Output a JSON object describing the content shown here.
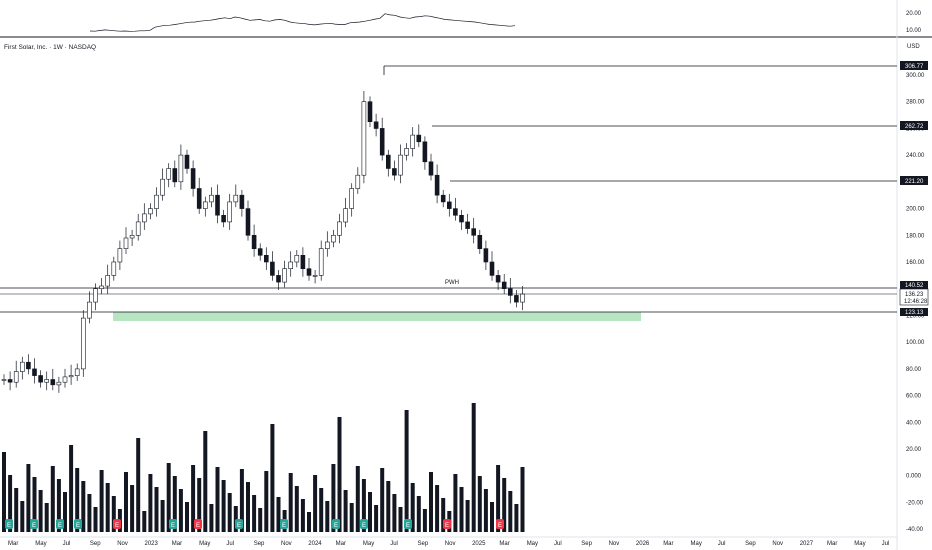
{
  "header": {
    "title": "First Solar, Inc. · 1W · NASDAQ",
    "currency": "USD"
  },
  "indicator_pane": {
    "ticks": [
      "20.00",
      "10.00"
    ]
  },
  "price_axis": {
    "ticks": [
      "300.00",
      "280.00",
      "260.00",
      "240.00",
      "220.00",
      "200.00",
      "180.00",
      "160.00",
      "140.00",
      "120.00",
      "100.00",
      "80.00",
      "60.00",
      "40.00",
      "20.00",
      "0.000",
      "-20.00",
      "-40.00"
    ]
  },
  "time_axis": {
    "labels": [
      "Mar",
      "May",
      "Jul",
      "Sep",
      "Nov",
      "2023",
      "Mar",
      "May",
      "Jul",
      "Sep",
      "Nov",
      "2024",
      "Mar",
      "May",
      "Jul",
      "Sep",
      "Nov",
      "2025",
      "Mar",
      "May",
      "Jul",
      "Sep",
      "Nov",
      "2026",
      "Mar",
      "May",
      "Jul",
      "Sep",
      "Nov",
      "2027",
      "Mar",
      "May",
      "Jul"
    ]
  },
  "levels": [
    {
      "value": "306.77",
      "color": "#131722"
    },
    {
      "value": "262.72",
      "color": "#131722"
    },
    {
      "value": "221.20",
      "color": "#131722"
    },
    {
      "value": "140.52",
      "color": "#131722"
    },
    {
      "value": "136.23",
      "color": "#131722"
    },
    {
      "value": "12:46:28",
      "color": "#131722"
    },
    {
      "value": "123.13",
      "color": "#131722"
    }
  ],
  "annotations": {
    "pwh": "PWH"
  },
  "event_markers": {
    "earnings_letter": "E",
    "dividend_letter": "D"
  },
  "colors": {
    "candle": "#131722",
    "zone": "#b7e4c1",
    "line": "#131722"
  },
  "chart_data": {
    "type": "candlestick",
    "title": "First Solar, Inc. · 1W · NASDAQ",
    "y_unit": "USD",
    "ylim": [
      -40,
      320
    ],
    "key_levels": [
      306.77,
      262.72,
      221.2,
      140.52,
      136.23,
      123.13
    ],
    "support_zone": [
      118,
      125
    ],
    "close_price": 136.23,
    "countdown": "12:46:28",
    "weekly_closes_approx": [
      72,
      70,
      78,
      85,
      80,
      75,
      70,
      72,
      68,
      70,
      74,
      75,
      80,
      118,
      130,
      140,
      142,
      150,
      160,
      170,
      178,
      180,
      190,
      196,
      200,
      210,
      222,
      230,
      220,
      240,
      230,
      215,
      200,
      205,
      210,
      195,
      190,
      205,
      210,
      200,
      180,
      170,
      165,
      160,
      150,
      145,
      155,
      160,
      165,
      155,
      150,
      150,
      170,
      175,
      180,
      190,
      200,
      215,
      225,
      280,
      265,
      260,
      240,
      230,
      225,
      240,
      245,
      255,
      250,
      235,
      225,
      210,
      205,
      200,
      195,
      190,
      185,
      180,
      170,
      160,
      150,
      145,
      140,
      135,
      130,
      136
    ]
  }
}
